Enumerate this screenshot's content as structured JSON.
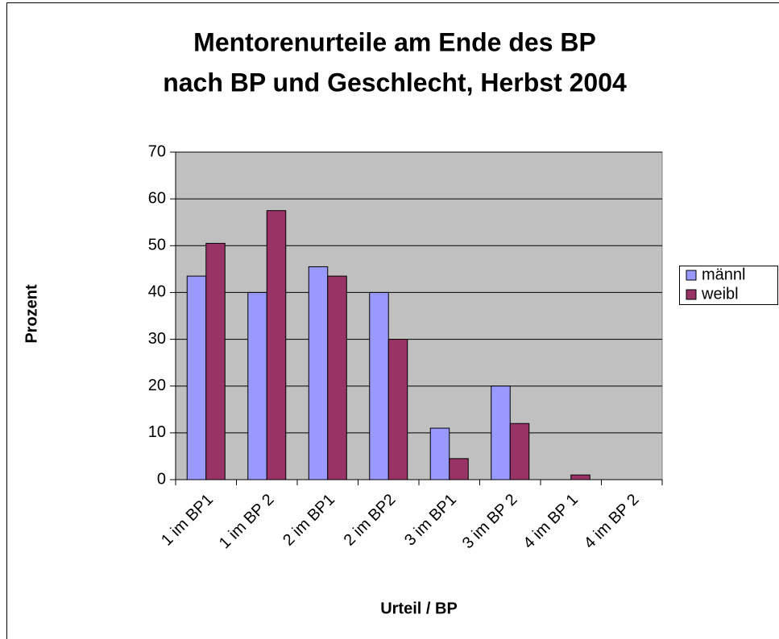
{
  "chart_data": {
    "type": "bar",
    "title": [
      "Mentorenurteile am Ende des BP",
      "nach BP und Geschlecht, Herbst 2004"
    ],
    "y_label": "Prozent",
    "x_label": "Urteil / BP",
    "categories": [
      "1 im BP1",
      "1 im BP 2",
      "2 im BP1",
      "2 im BP2",
      "3 im BP1",
      "3 im BP 2",
      "4 im BP 1",
      "4 im BP 2"
    ],
    "series": [
      {
        "name": "männl",
        "color": "#9999ff",
        "values": [
          43.5,
          40,
          45.5,
          40,
          11,
          20,
          0,
          0
        ]
      },
      {
        "name": "weibl",
        "color": "#993366",
        "values": [
          50.5,
          57.5,
          43.5,
          30,
          4.5,
          12,
          1,
          0
        ]
      }
    ],
    "ylim": [
      0,
      70
    ],
    "yticks": [
      0,
      10,
      20,
      30,
      40,
      50,
      60,
      70
    ],
    "grid": true,
    "legend": "right"
  }
}
